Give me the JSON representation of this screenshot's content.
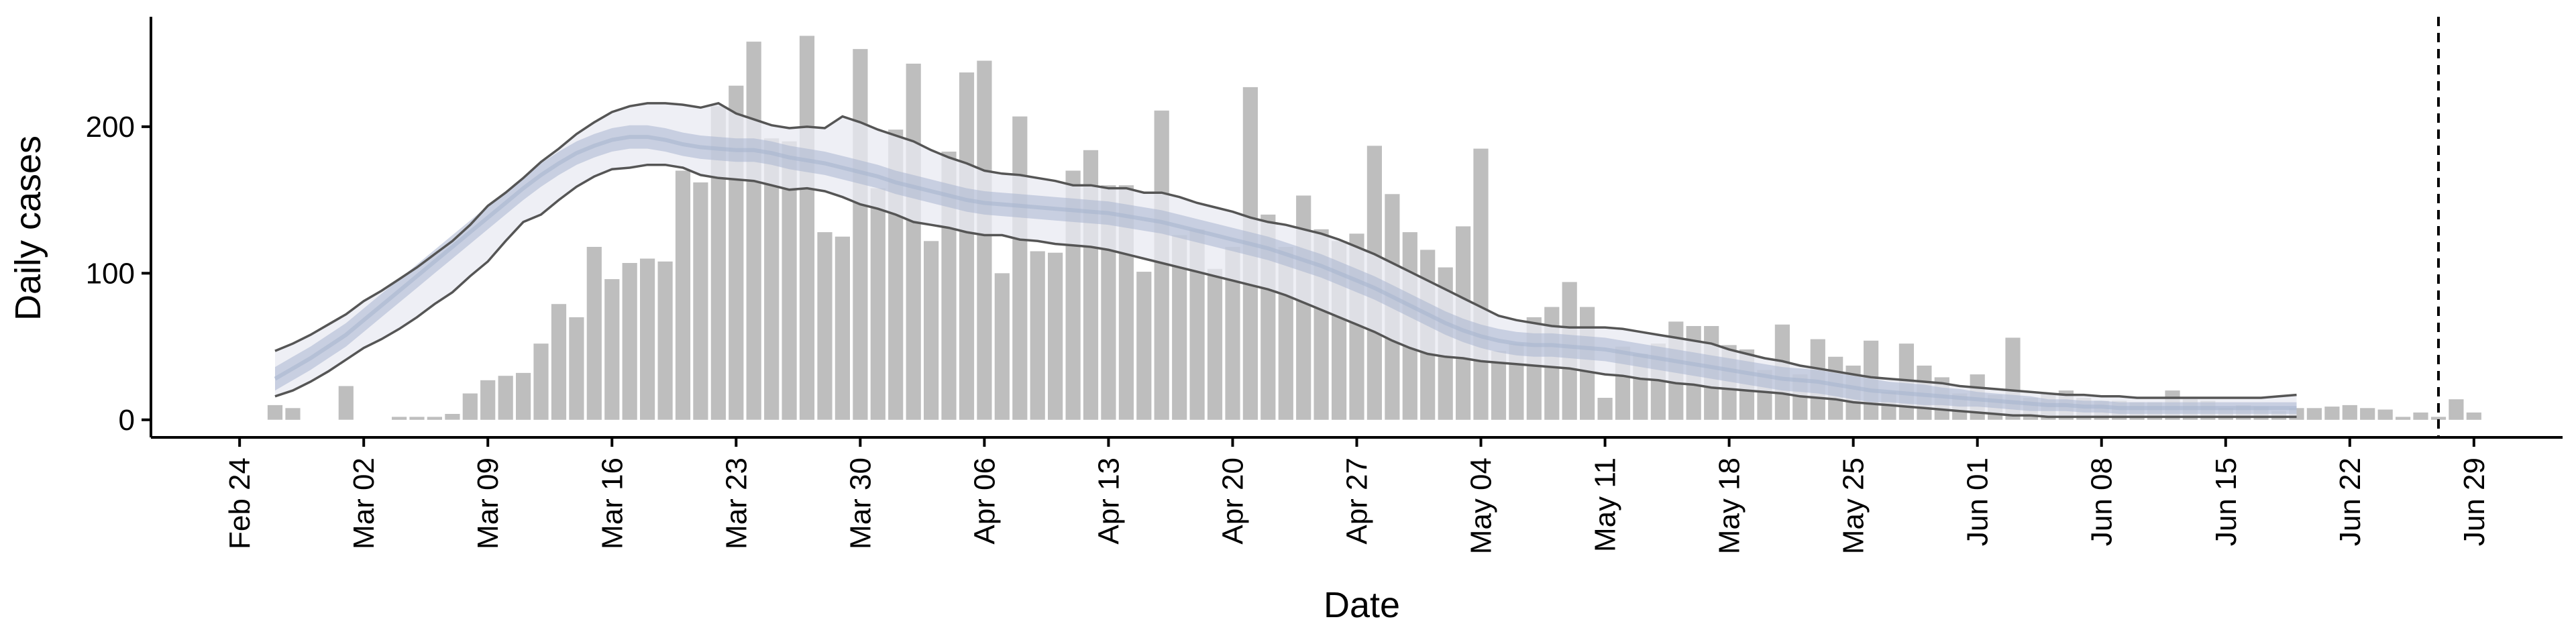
{
  "chart_data": {
    "type": "bar",
    "title": "",
    "xlabel": "Date",
    "ylabel": "Daily cases",
    "x_tick_labels": [
      "Feb 24",
      "Mar 02",
      "Mar 09",
      "Mar 16",
      "Mar 23",
      "Mar 30",
      "Apr 06",
      "Apr 13",
      "Apr 20",
      "Apr 27",
      "May 04",
      "May 11",
      "May 18",
      "May 25",
      "Jun 01",
      "Jun 08",
      "Jun 15",
      "Jun 22",
      "Jun 29"
    ],
    "y_ticks": [
      0,
      100,
      200
    ],
    "y_tick_labels": [
      "0",
      "100",
      "200"
    ],
    "ylim": [
      -12,
      275
    ],
    "xlim": [
      "2020-02-19",
      "2020-07-04"
    ],
    "grid": false,
    "year_assumed": 2020,
    "bar_color": "#bebebe",
    "band_outer_color": "#e8eaf2",
    "band_inner_color": "#a9b5cf",
    "envelope_line_color": "#555555",
    "reference_line": {
      "date": "2020-06-27",
      "style": "dashed"
    },
    "daily_cases": {
      "start_date": "2020-02-26",
      "values": [
        10,
        8,
        0,
        0,
        23,
        0,
        0,
        2,
        2,
        2,
        4,
        18,
        27,
        30,
        32,
        52,
        79,
        70,
        118,
        96,
        107,
        110,
        108,
        170,
        162,
        214,
        228,
        258,
        192,
        190,
        262,
        128,
        125,
        253,
        158,
        198,
        243,
        122,
        183,
        237,
        245,
        100,
        207,
        115,
        114,
        170,
        184,
        160,
        160,
        101,
        211,
        126,
        130,
        103,
        118,
        227,
        140,
        118,
        153,
        130,
        122,
        127,
        187,
        154,
        128,
        116,
        104,
        132,
        185,
        47,
        52,
        70,
        77,
        94,
        77,
        15,
        50,
        45,
        52,
        67,
        64,
        64,
        51,
        48,
        34,
        65,
        31,
        55,
        43,
        37,
        54,
        19,
        52,
        37,
        29,
        18,
        31,
        17,
        56,
        15,
        18,
        20,
        15,
        13,
        13,
        12,
        12,
        20,
        14,
        13,
        8,
        10,
        9,
        6,
        8,
        8,
        9,
        10,
        8,
        7,
        2,
        5,
        2,
        14,
        5
      ]
    },
    "band_median": {
      "start_date": "2020-02-26",
      "values": [
        28,
        35,
        42,
        50,
        58,
        68,
        78,
        88,
        98,
        108,
        118,
        128,
        138,
        148,
        158,
        167,
        175,
        182,
        187,
        191,
        193,
        193,
        191,
        188,
        186,
        185,
        184,
        184,
        182,
        179,
        177,
        175,
        172,
        169,
        166,
        162,
        159,
        156,
        153,
        150,
        148,
        147,
        146,
        145,
        144,
        143,
        142,
        141,
        139,
        137,
        135,
        132,
        129,
        126,
        123,
        120,
        117,
        113,
        109,
        105,
        100,
        95,
        90,
        84,
        78,
        72,
        66,
        61,
        57,
        54,
        52,
        51,
        51,
        50,
        49,
        48,
        46,
        44,
        42,
        40,
        38,
        36,
        34,
        32,
        30,
        28,
        27,
        26,
        24,
        22,
        20,
        19,
        18,
        17,
        16,
        15,
        14,
        13,
        12,
        11,
        10,
        10,
        9,
        9,
        8,
        8,
        8,
        8,
        8,
        8,
        8,
        8,
        8,
        8,
        8
      ]
    },
    "band_inner": {
      "start_date": "2020-02-26",
      "lower": [
        20,
        27,
        34,
        42,
        50,
        60,
        70,
        80,
        90,
        100,
        110,
        120,
        130,
        140,
        150,
        159,
        167,
        174,
        179,
        183,
        185,
        185,
        183,
        180,
        178,
        177,
        176,
        176,
        174,
        171,
        169,
        167,
        164,
        161,
        158,
        154,
        151,
        148,
        145,
        142,
        140,
        139,
        138,
        137,
        136,
        135,
        134,
        133,
        131,
        129,
        127,
        124,
        121,
        118,
        115,
        112,
        109,
        105,
        101,
        97,
        92,
        87,
        82,
        76,
        70,
        64,
        58,
        53,
        49,
        46,
        44,
        43,
        43,
        42,
        41,
        40,
        38,
        36,
        34,
        32,
        30,
        28,
        26,
        24,
        22,
        20,
        19,
        18,
        16,
        14,
        12,
        12,
        11,
        10,
        10,
        9,
        9,
        8,
        7,
        6,
        6,
        6,
        5,
        5,
        4,
        4,
        4,
        4,
        4,
        4,
        4,
        4,
        4,
        4,
        4
      ],
      "upper": [
        36,
        43,
        50,
        58,
        66,
        76,
        86,
        96,
        106,
        116,
        126,
        136,
        146,
        156,
        166,
        175,
        183,
        190,
        195,
        199,
        201,
        201,
        199,
        196,
        194,
        193,
        192,
        192,
        190,
        187,
        185,
        183,
        180,
        177,
        174,
        170,
        167,
        164,
        161,
        158,
        156,
        155,
        154,
        153,
        152,
        151,
        150,
        149,
        147,
        145,
        143,
        140,
        137,
        134,
        131,
        128,
        125,
        121,
        117,
        113,
        108,
        103,
        98,
        92,
        86,
        80,
        74,
        69,
        65,
        62,
        60,
        59,
        59,
        58,
        57,
        56,
        54,
        52,
        50,
        48,
        46,
        44,
        42,
        40,
        38,
        36,
        35,
        34,
        32,
        30,
        28,
        26,
        25,
        24,
        22,
        21,
        19,
        18,
        17,
        16,
        14,
        14,
        13,
        13,
        12,
        12,
        12,
        12,
        12,
        12,
        12,
        12,
        12,
        12,
        12
      ]
    },
    "band_outer": {
      "start_date": "2020-02-26",
      "lower": [
        16,
        20,
        26,
        33,
        41,
        49,
        55,
        62,
        70,
        79,
        87,
        98,
        108,
        122,
        135,
        140,
        150,
        159,
        166,
        171,
        172,
        174,
        174,
        172,
        167,
        165,
        164,
        163,
        160,
        157,
        158,
        156,
        152,
        147,
        144,
        140,
        135,
        133,
        131,
        128,
        126,
        126,
        123,
        122,
        120,
        119,
        118,
        116,
        113,
        110,
        107,
        104,
        101,
        98,
        95,
        92,
        89,
        85,
        80,
        75,
        70,
        65,
        60,
        54,
        49,
        45,
        43,
        42,
        40,
        39,
        38,
        37,
        36,
        35,
        33,
        31,
        30,
        28,
        27,
        25,
        24,
        22,
        21,
        20,
        19,
        18,
        16,
        15,
        14,
        12,
        11,
        10,
        9,
        8,
        7,
        6,
        5,
        4,
        3,
        3,
        2,
        2,
        2,
        2,
        2,
        2,
        2,
        2,
        2,
        2,
        2,
        2,
        2,
        2,
        2
      ],
      "upper": [
        47,
        52,
        58,
        65,
        72,
        81,
        88,
        96,
        104,
        113,
        122,
        133,
        146,
        155,
        165,
        176,
        185,
        195,
        203,
        210,
        214,
        216,
        216,
        215,
        213,
        216,
        209,
        205,
        201,
        199,
        200,
        199,
        207,
        203,
        198,
        194,
        190,
        184,
        179,
        175,
        170,
        168,
        167,
        165,
        163,
        160,
        160,
        158,
        158,
        155,
        155,
        152,
        148,
        145,
        142,
        138,
        135,
        133,
        130,
        127,
        123,
        118,
        113,
        107,
        101,
        95,
        89,
        83,
        77,
        71,
        68,
        66,
        64,
        63,
        63,
        63,
        62,
        60,
        58,
        56,
        54,
        52,
        48,
        45,
        42,
        40,
        37,
        35,
        33,
        31,
        29,
        28,
        27,
        26,
        25,
        23,
        22,
        21,
        20,
        19,
        18,
        17,
        17,
        16,
        16,
        15,
        15,
        15,
        15,
        15,
        15,
        15,
        15,
        16,
        17
      ]
    }
  }
}
